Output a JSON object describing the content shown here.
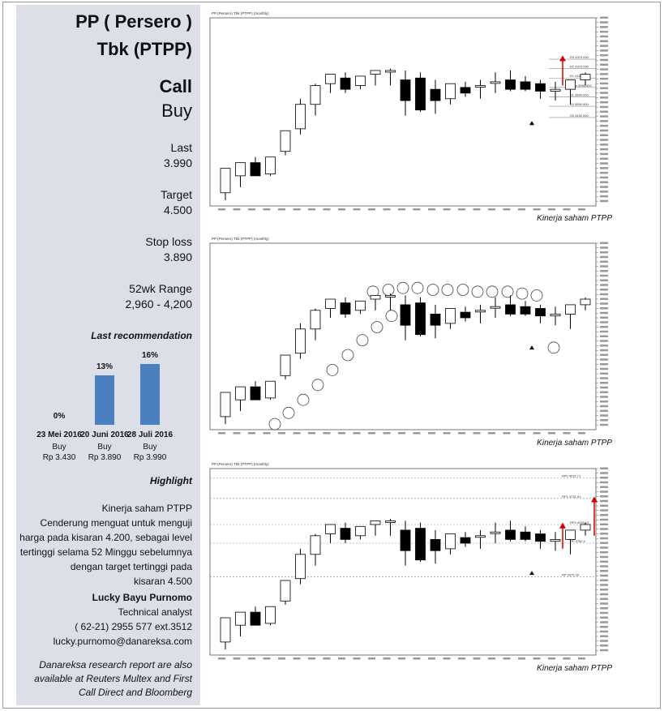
{
  "title_line1": "PP ( Persero )",
  "title_line2": "Tbk (PTPP)",
  "recommendation": "Call",
  "action": "Buy",
  "last_label": "Last",
  "last_value": "3.990",
  "target_label": "Target",
  "target_value": "4.500",
  "stoploss_label": "Stop loss",
  "stoploss_value": "3.890",
  "range_label": "52wk Range",
  "range_value": "2,960 - 4,200",
  "last_rec_heading": "Last recommendation",
  "chart_data": {
    "type": "bar",
    "categories": [
      "23 Mei 2016",
      "20 Juni 2016",
      "28 Juli 2016"
    ],
    "values": [
      0,
      13,
      16
    ],
    "value_labels": [
      "0%",
      "13%",
      "16%"
    ],
    "actions": [
      "Buy",
      "Buy",
      "Buy"
    ],
    "prices": [
      "Rp 3.430",
      "Rp 3.890",
      "Rp 3.990"
    ],
    "bar_color": "#4a7fc0"
  },
  "highlight_heading": "Highlight",
  "highlight_text": [
    "Kinerja saham PTPP",
    "Cenderung menguat untuk menguji",
    "harga pada kisaran 4.200, sebagai level",
    "tertinggi selama 52 Minggu sebelumnya",
    "dengan target tertinggi pada",
    "kisaran 4.500"
  ],
  "analyst": {
    "name": "Lucky Bayu Purnomo",
    "role": "Technical analyst",
    "phone": "( 62-21) 2955 577 ext.3512",
    "email": "lucky.purnomo@danareksa.com"
  },
  "footer": [
    "Danareksa research report are also",
    "available at Reuters Multex and First",
    "Call Direct and Bloomberg"
  ],
  "charts": [
    {
      "caption": "Kinerja saham PTPP",
      "header": "PP (Persero) Tbk (PTPP) (monthly)"
    },
    {
      "caption": "Kinerja  saham PTPP",
      "header": "PP (Persero) Tbk (PTPP) (monthly)",
      "indicator": "Parabolic Stop And Reverse (0.02,0.2)"
    },
    {
      "caption": "Kinerja saham PTPP",
      "header": "PP (Persero) Tbk (PTPP) (monthly)"
    }
  ],
  "chart1_levels": [
    "R3 4370.000",
    "R2 4370.000",
    "R1 4190.000",
    "Pivot 3990.000",
    "S1 3845.000",
    "S2 3590.000",
    "S3 3430.000"
  ],
  "chart3_levels": [
    "RP0 4531.71",
    "RP1 4731.91",
    "RP4 4245.12",
    "RP 3762.4",
    "RP 3375.29"
  ],
  "colors": {
    "sidebar_bg": "#dcdfe8",
    "bar": "#4a7fc0",
    "arrow": "#d00000"
  }
}
